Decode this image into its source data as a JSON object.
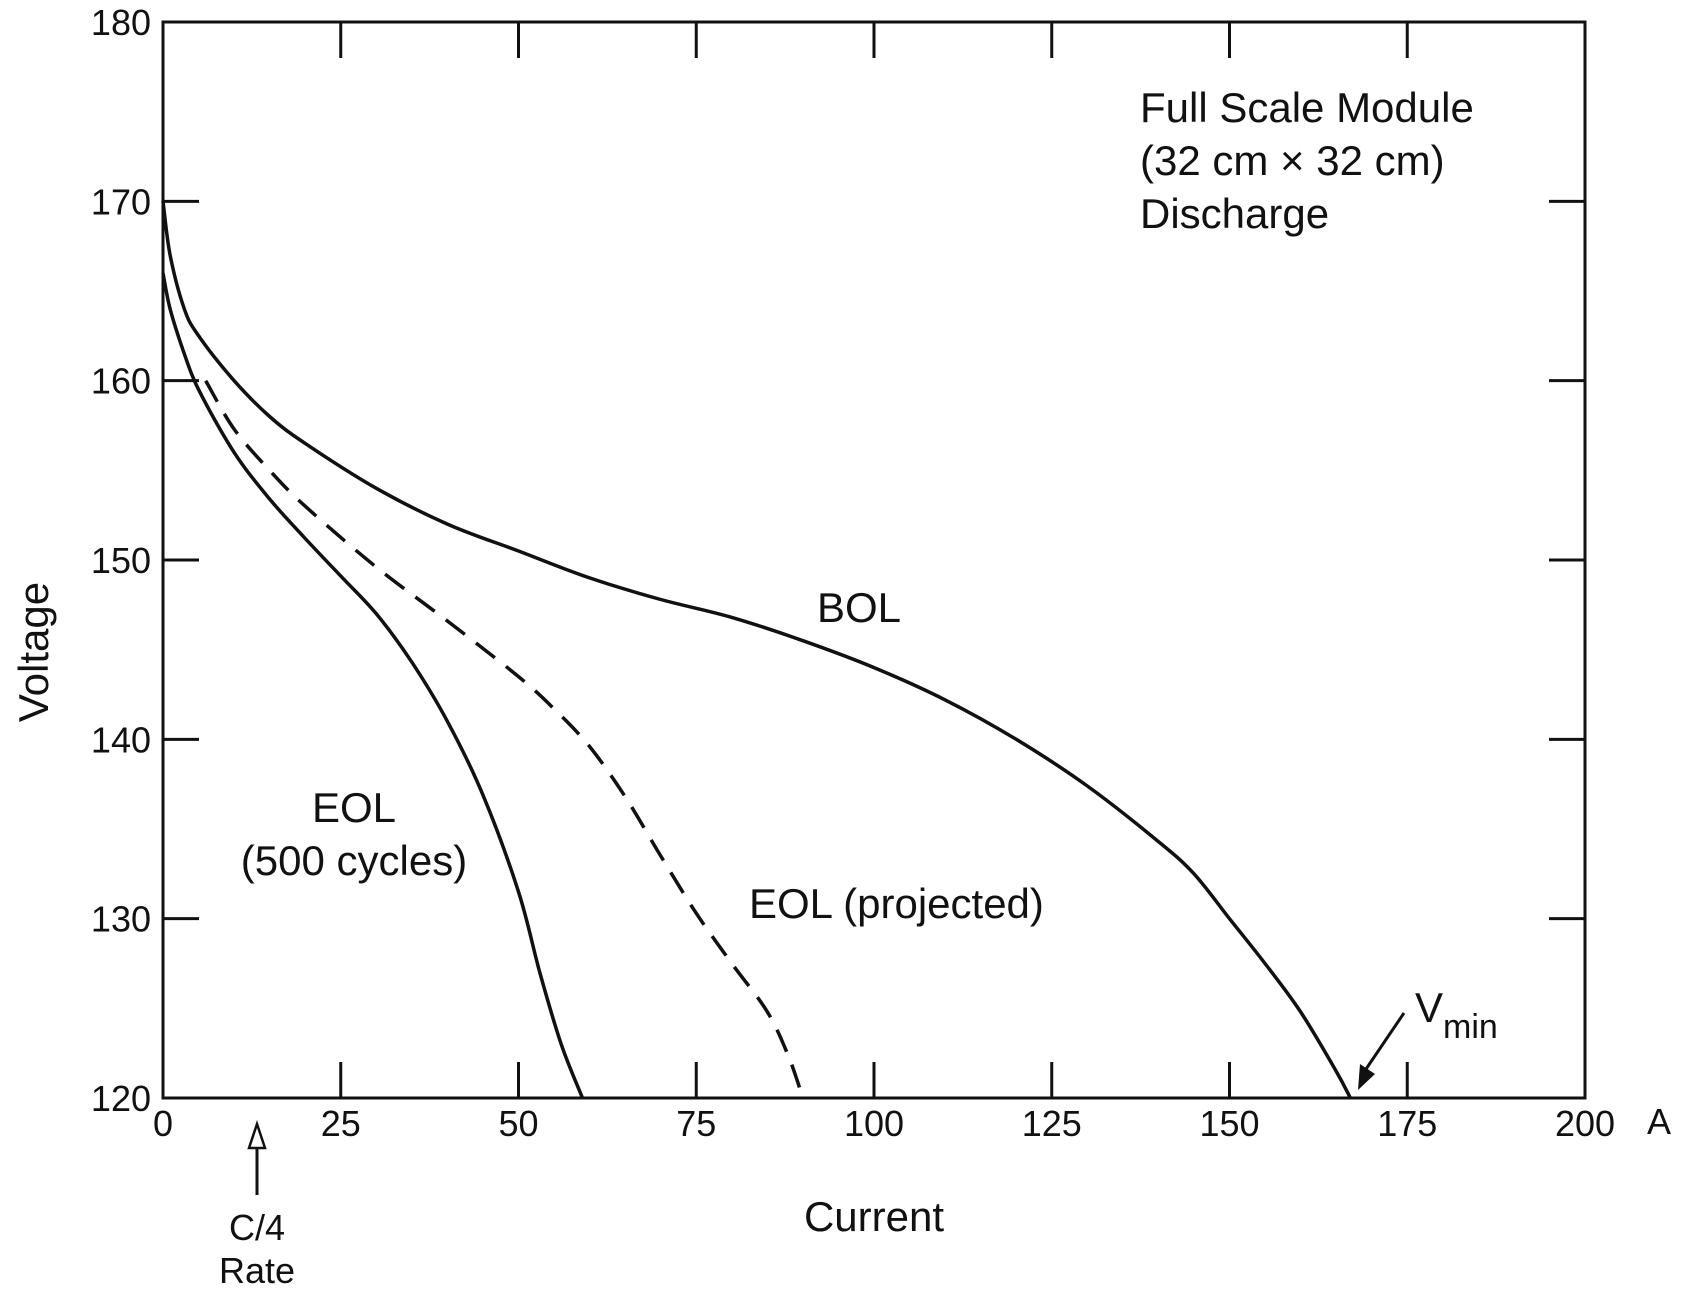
{
  "chart_data": {
    "type": "line",
    "title": "",
    "xlabel": "Current",
    "ylabel": "Voltage",
    "xunit": "A",
    "xlim": [
      0,
      200
    ],
    "ylim": [
      120,
      180
    ],
    "xticks": [
      "0",
      "25",
      "50",
      "75",
      "100",
      "125",
      "150",
      "175",
      "200"
    ],
    "yticks": [
      "120",
      "130",
      "140",
      "150",
      "160",
      "170",
      "180"
    ],
    "grid": false,
    "annotations": {
      "info_lines": [
        "Full Scale Module",
        "(32 cm × 32 cm)",
        "Discharge"
      ],
      "c4_rate": [
        "C/4",
        "Rate"
      ],
      "vmin": {
        "main": "V",
        "sub": "min"
      }
    },
    "series": [
      {
        "name": "BOL",
        "style": "solid",
        "points": [
          [
            0,
            170
          ],
          [
            1,
            167
          ],
          [
            3,
            164
          ],
          [
            5,
            162.5
          ],
          [
            10,
            160
          ],
          [
            15,
            158
          ],
          [
            20,
            156.5
          ],
          [
            30,
            154
          ],
          [
            40,
            152
          ],
          [
            50,
            150.5
          ],
          [
            60,
            149
          ],
          [
            70,
            147.8
          ],
          [
            80,
            146.8
          ],
          [
            90,
            145.5
          ],
          [
            100,
            144
          ],
          [
            110,
            142.2
          ],
          [
            120,
            140
          ],
          [
            130,
            137.4
          ],
          [
            140,
            134.3
          ],
          [
            145,
            132.5
          ],
          [
            150,
            130
          ],
          [
            155,
            127.5
          ],
          [
            160,
            124.8
          ],
          [
            165,
            121.5
          ],
          [
            167,
            120
          ]
        ]
      },
      {
        "name": "EOL (projected)",
        "style": "dashed",
        "points": [
          [
            6,
            160
          ],
          [
            10,
            157.3
          ],
          [
            15,
            155
          ],
          [
            20,
            153
          ],
          [
            30,
            149.6
          ],
          [
            40,
            146.6
          ],
          [
            50,
            143.5
          ],
          [
            55,
            141.7
          ],
          [
            60,
            139.6
          ],
          [
            65,
            136.8
          ],
          [
            70,
            133.5
          ],
          [
            75,
            130.3
          ],
          [
            80,
            127.5
          ],
          [
            85,
            124.8
          ],
          [
            88,
            122.3
          ],
          [
            90,
            120
          ]
        ]
      },
      {
        "name": "EOL\n(500 cycles)",
        "style": "solid",
        "points": [
          [
            0,
            166
          ],
          [
            1,
            164
          ],
          [
            3,
            161.5
          ],
          [
            5,
            159.5
          ],
          [
            10,
            156
          ],
          [
            15,
            153.4
          ],
          [
            20,
            151.2
          ],
          [
            25,
            149.1
          ],
          [
            30,
            147
          ],
          [
            35,
            144.3
          ],
          [
            40,
            141
          ],
          [
            45,
            136.9
          ],
          [
            50,
            131.5
          ],
          [
            53,
            127
          ],
          [
            56,
            123
          ],
          [
            59,
            120
          ]
        ]
      }
    ]
  }
}
